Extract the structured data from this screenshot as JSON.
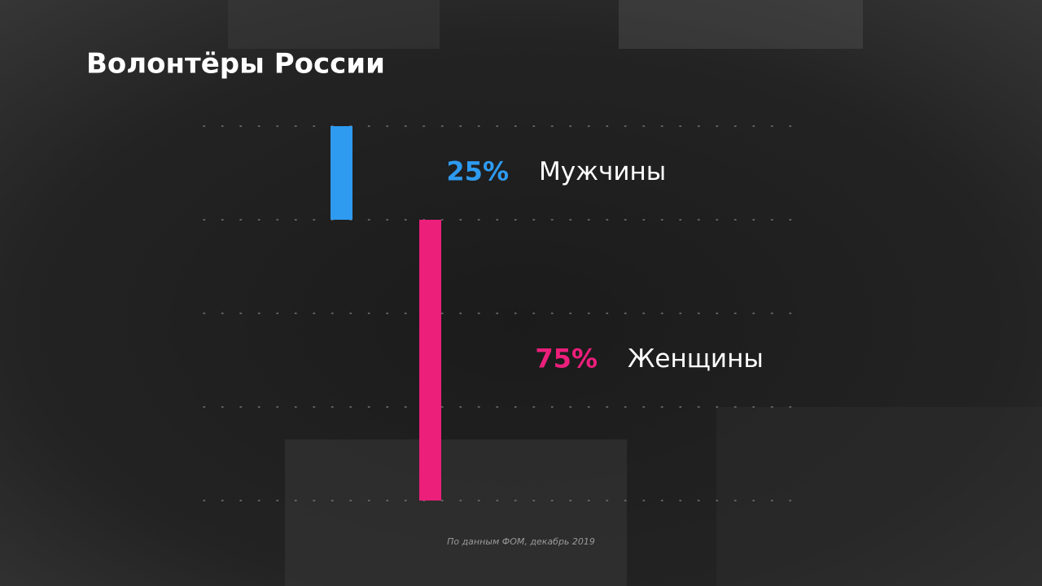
{
  "chart_data": {
    "type": "waterfall",
    "title": "Волонтёры России",
    "categories": [
      "Мужчины",
      "Женщины"
    ],
    "series": [
      {
        "name": null,
        "colors": [
          "#2e9bf0",
          "#ec1f7b"
        ],
        "values": [
          25,
          75
        ],
        "value_labels": [
          "25%",
          "75%"
        ]
      }
    ],
    "ylim": [
      0,
      100
    ],
    "yticks": [
      0,
      25,
      50,
      75,
      100
    ],
    "grid": true,
    "source": "По данным ФОМ, декабрь 2019"
  }
}
